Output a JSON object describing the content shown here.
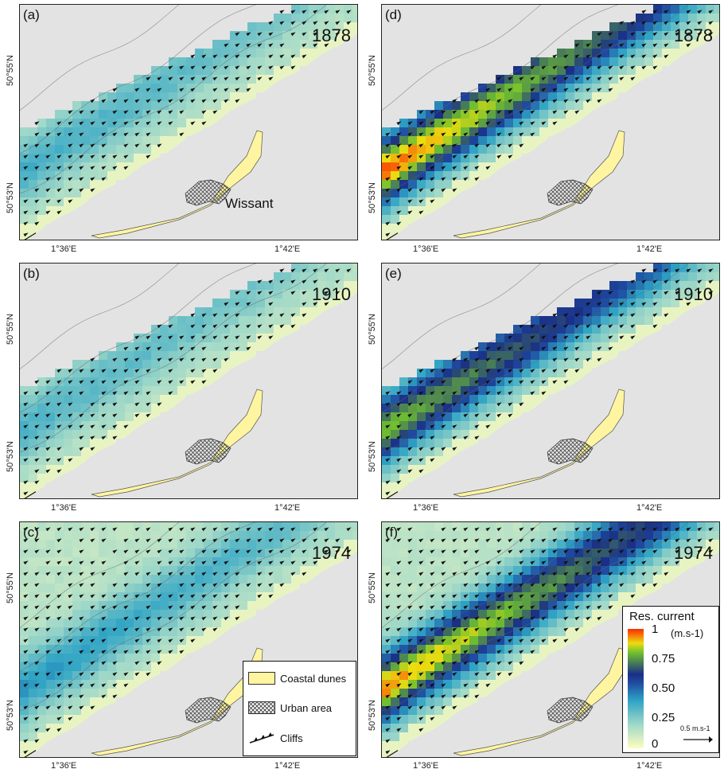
{
  "panels": [
    {
      "label": "(a)",
      "year": "1878",
      "intensity": 0.22,
      "place": "Wissant"
    },
    {
      "label": "(b)",
      "year": "1910",
      "intensity": 0.2,
      "place": ""
    },
    {
      "label": "(c)",
      "year": "1974",
      "intensity": 0.28,
      "place": ""
    },
    {
      "label": "(d)",
      "year": "1878",
      "intensity": 0.82,
      "place": ""
    },
    {
      "label": "(e)",
      "year": "1910",
      "intensity": 0.66,
      "place": ""
    },
    {
      "label": "(f)",
      "year": "1974",
      "intensity": 0.8,
      "place": ""
    }
  ],
  "axes": {
    "x_ticks": [
      "1°36'E",
      "1°42'E"
    ],
    "y_ticks": [
      "50°55'N",
      "50°53'N"
    ]
  },
  "legend": {
    "dunes": "Coastal dunes",
    "urban": "Urban area",
    "cliffs": "Cliffs",
    "dune_color": "#fff5a0"
  },
  "colorbar": {
    "title": "Res. current",
    "unit": "(m.s-1)",
    "labels": [
      "1",
      "0.75",
      "0.50",
      "0.25",
      "0"
    ],
    "scale": "0.5 m.s-1"
  }
}
